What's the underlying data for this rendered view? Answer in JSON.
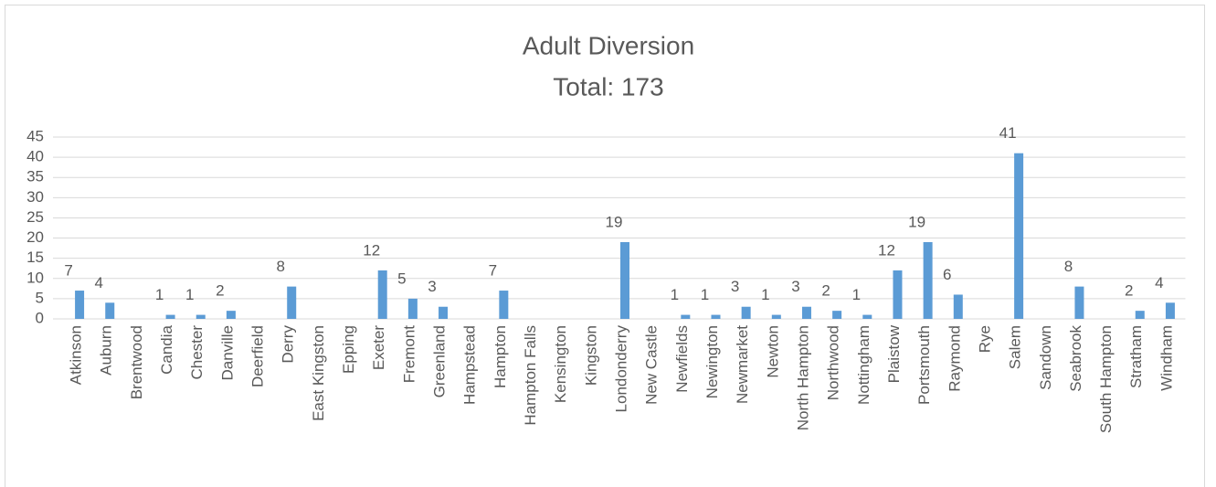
{
  "chart_data": {
    "type": "bar",
    "title": "Adult Diversion",
    "subtitle": "Total: 173",
    "categories": [
      "Atkinson",
      "Auburn",
      "Brentwood",
      "Candia",
      "Chester",
      "Danville",
      "Deerfield",
      "Derry",
      "East Kingston",
      "Epping",
      "Exeter",
      "Fremont",
      "Greenland",
      "Hampstead",
      "Hampton",
      "Hampton Falls",
      "Kensington",
      "Kingston",
      "Londonderry",
      "New Castle",
      "Newfields",
      "Newington",
      "Newmarket",
      "Newton",
      "North Hampton",
      "Northwood",
      "Nottingham",
      "Plaistow",
      "Portsmouth",
      "Raymond",
      "Rye",
      "Salem",
      "Sandown",
      "Seabrook",
      "South Hampton",
      "Stratham",
      "Windham"
    ],
    "values": [
      7,
      4,
      null,
      1,
      1,
      2,
      null,
      8,
      null,
      null,
      12,
      5,
      3,
      null,
      7,
      null,
      null,
      null,
      19,
      null,
      1,
      1,
      3,
      1,
      3,
      2,
      1,
      12,
      19,
      6,
      null,
      41,
      null,
      8,
      null,
      2,
      4
    ],
    "color": "#5b9bd5",
    "ylim": [
      0,
      45
    ],
    "yticks": [
      0,
      5,
      10,
      15,
      20,
      25,
      30,
      35,
      40,
      45
    ],
    "grid": true
  }
}
